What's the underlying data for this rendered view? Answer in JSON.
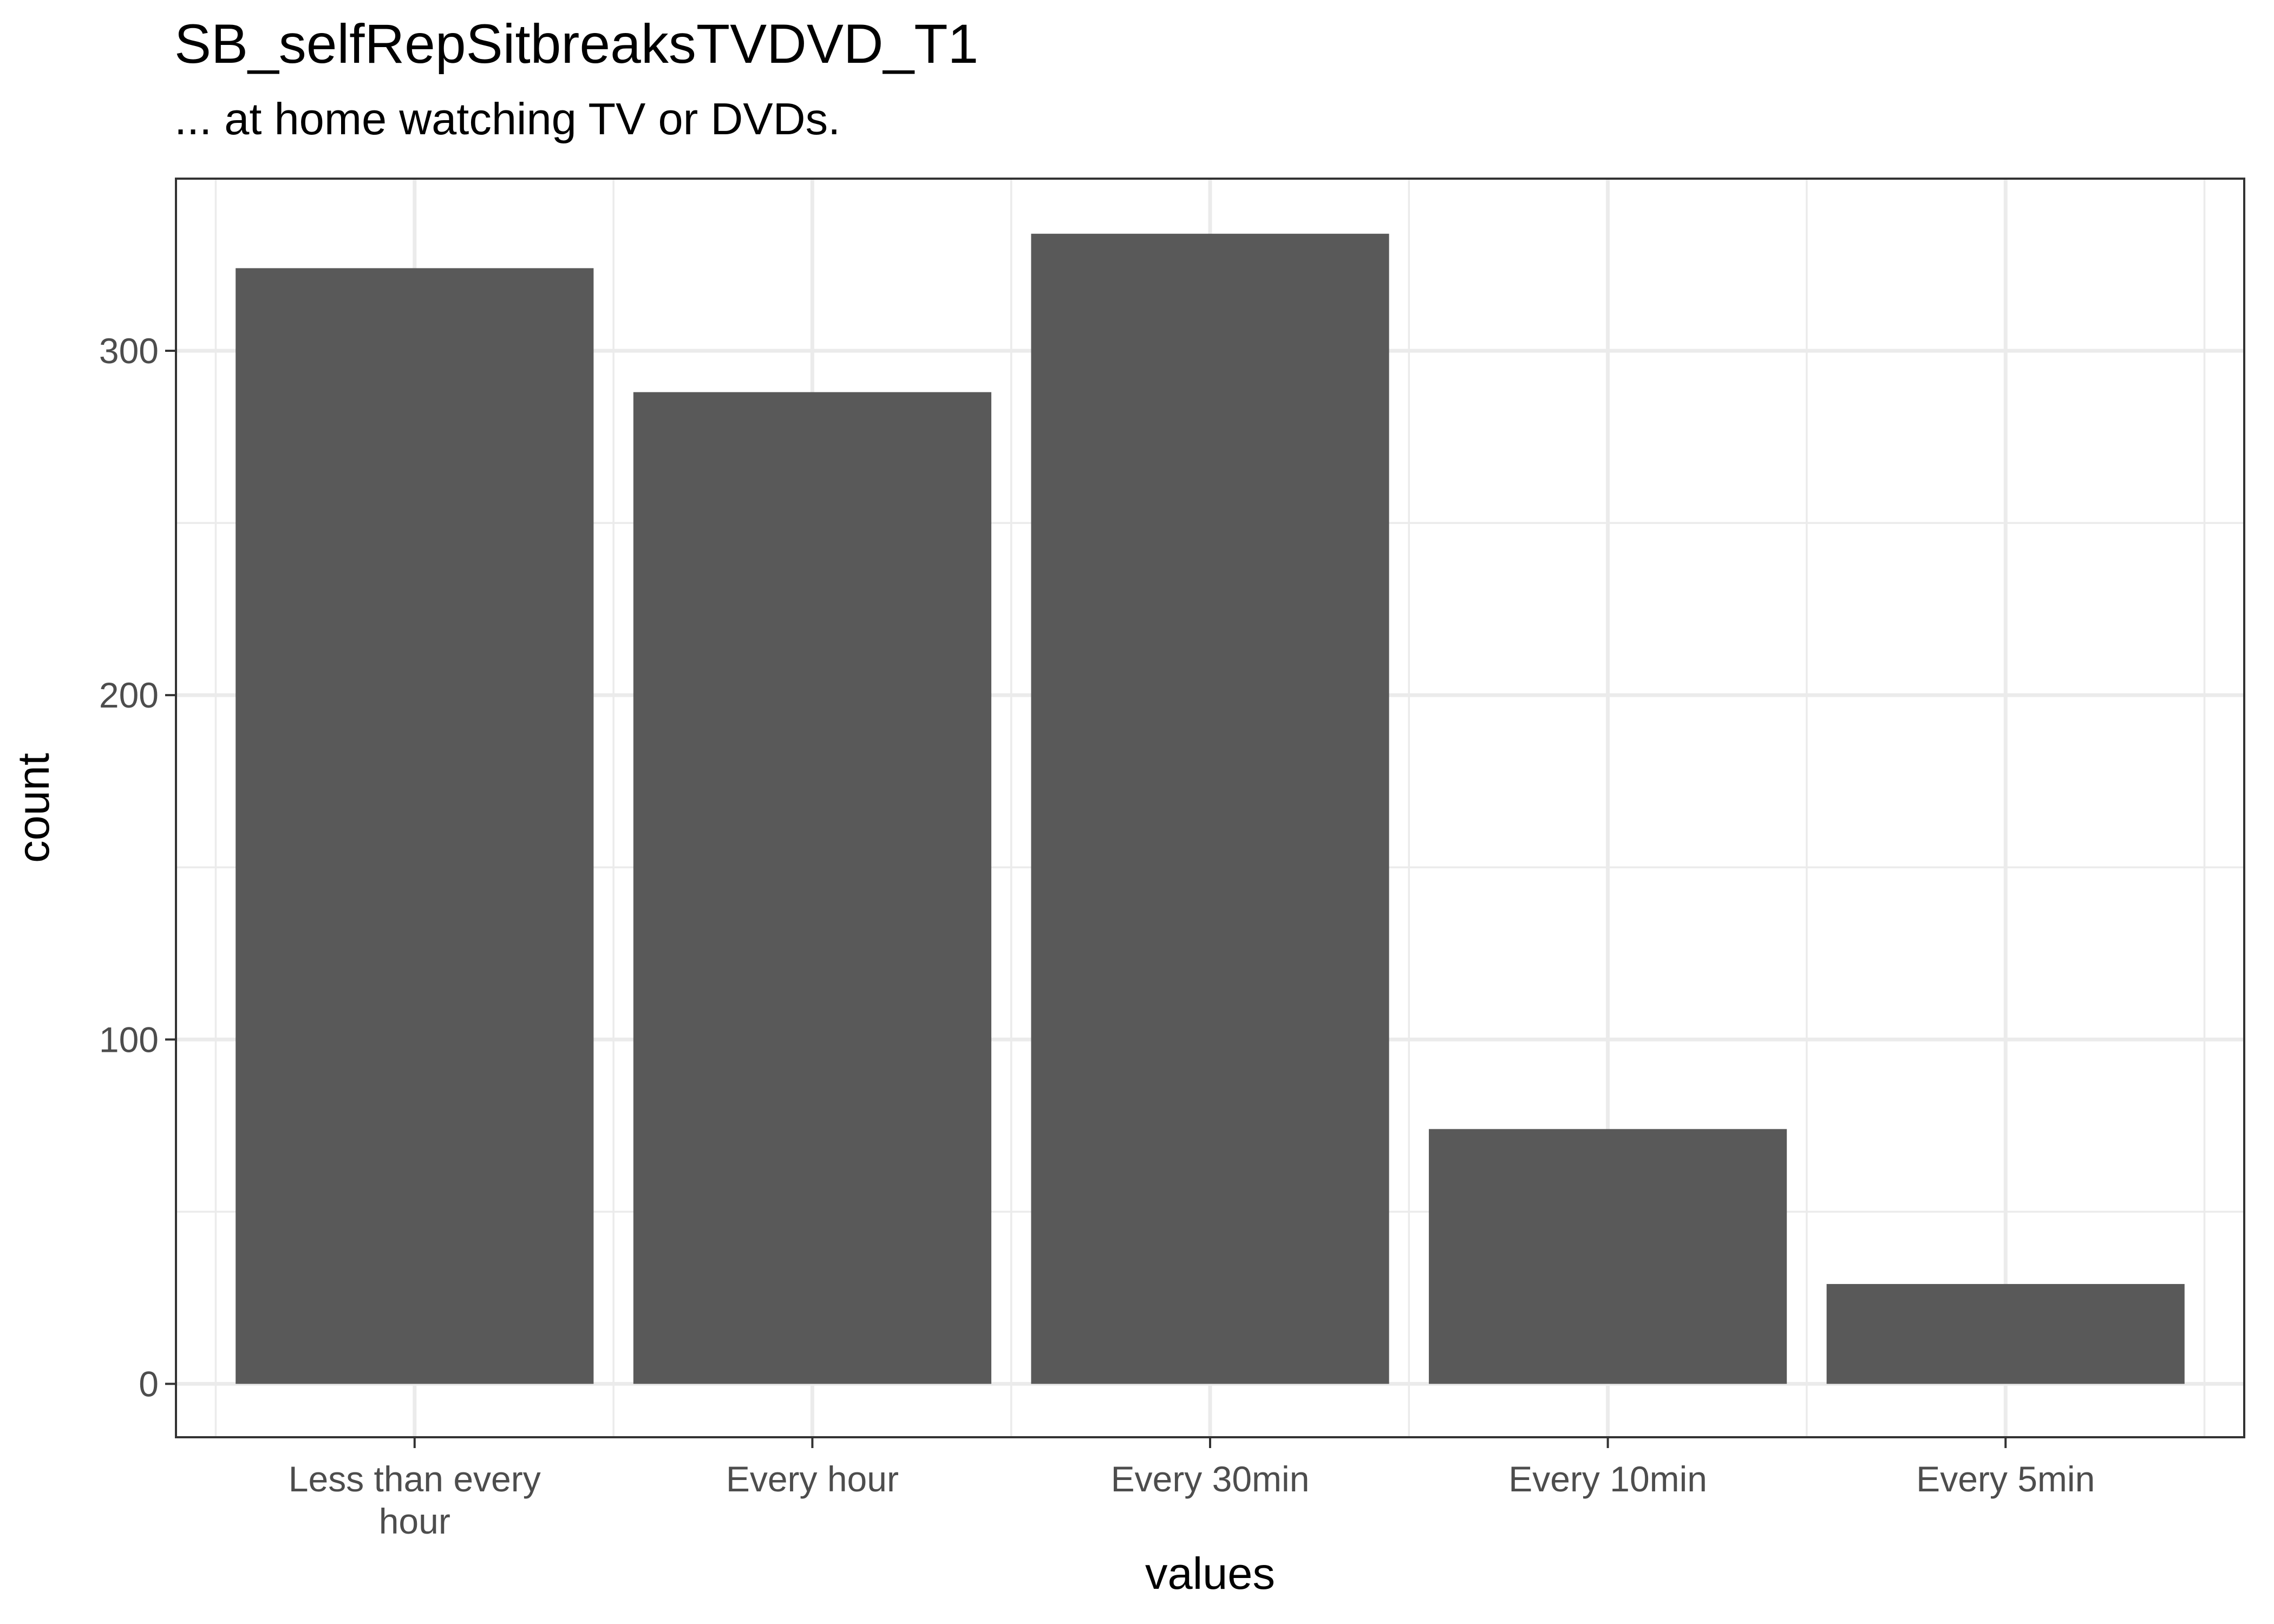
{
  "chart_data": {
    "type": "bar",
    "title": "SB_selfRepSitbreaksTVDVD_T1",
    "subtitle": "... at home watching TV or DVDs.",
    "xlabel": "values",
    "ylabel": "count",
    "categories": [
      "Less than every hour",
      "Every hour",
      "Every 30min",
      "Every 10min",
      "Every 5min"
    ],
    "category_label_lines": [
      [
        "Less than every",
        "hour"
      ],
      [
        "Every hour"
      ],
      [
        "Every 30min"
      ],
      [
        "Every 10min"
      ],
      [
        "Every 5min"
      ]
    ],
    "values": [
      324,
      288,
      334,
      74,
      29
    ],
    "ylim": [
      -15.5,
      350
    ],
    "yticks": [
      0,
      100,
      200,
      300
    ],
    "grid": true,
    "legend": "none",
    "colors": {
      "bar": "#595959",
      "grid": "#ebebeb",
      "panel_border": "#333333",
      "tick_label": "#4d4d4d",
      "axis_title": "#000000",
      "background": "#ffffff"
    }
  }
}
